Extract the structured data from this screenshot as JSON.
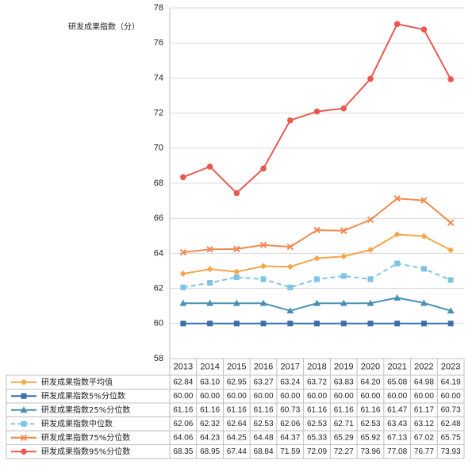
{
  "chart_data": {
    "type": "line",
    "ylabel": "研发成果指数（分）",
    "ylim": [
      58,
      78
    ],
    "yticks": [
      58,
      60,
      62,
      64,
      66,
      68,
      70,
      72,
      74,
      76,
      78
    ],
    "categories": [
      "2013",
      "2014",
      "2015",
      "2016",
      "2017",
      "2018",
      "2019",
      "2020",
      "2021",
      "2022",
      "2023"
    ],
    "grid": true,
    "legend_placement": "data table below plot",
    "series": [
      {
        "name": "研发成果指数平均值",
        "color": "#F5A54A",
        "marker": "diamond",
        "dashed": false,
        "values": [
          62.84,
          63.1,
          62.95,
          63.27,
          63.24,
          63.72,
          63.83,
          64.2,
          65.08,
          64.98,
          64.19
        ]
      },
      {
        "name": "研发成果指数5%分位数",
        "color": "#3A6FA8",
        "marker": "square",
        "dashed": false,
        "values": [
          60.0,
          60.0,
          60.0,
          60.0,
          60.0,
          60.0,
          60.0,
          60.0,
          60.0,
          60.0,
          60.0
        ]
      },
      {
        "name": "研发成果指数25%分位数",
        "color": "#4A8FB5",
        "marker": "triangle",
        "dashed": false,
        "values": [
          61.16,
          61.16,
          61.16,
          61.16,
          60.73,
          61.16,
          61.16,
          61.16,
          61.47,
          61.17,
          60.73
        ]
      },
      {
        "name": "研发成果指数中位数",
        "color": "#7EC3E6",
        "marker": "square",
        "dashed": true,
        "values": [
          62.06,
          62.32,
          62.64,
          62.53,
          62.06,
          62.53,
          62.71,
          62.53,
          63.43,
          63.12,
          62.48
        ]
      },
      {
        "name": "研发成果指数75%分位数",
        "color": "#F08A50",
        "marker": "x",
        "dashed": false,
        "values": [
          64.06,
          64.23,
          64.25,
          64.48,
          64.37,
          65.33,
          65.29,
          65.92,
          67.13,
          67.02,
          65.75
        ]
      },
      {
        "name": "研发成果指数95%分位数",
        "color": "#E85A50",
        "marker": "circle",
        "dashed": false,
        "values": [
          68.35,
          68.95,
          67.44,
          68.84,
          71.59,
          72.09,
          72.27,
          73.96,
          77.08,
          76.77,
          73.93
        ]
      }
    ]
  }
}
